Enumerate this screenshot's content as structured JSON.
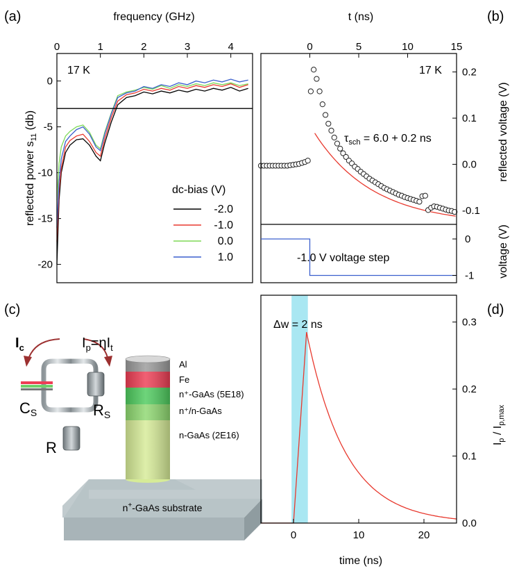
{
  "panel_labels": {
    "a": "(a)",
    "b": "(b)",
    "c": "(c)",
    "d": "(d)"
  },
  "chart_data": [
    {
      "id": "a",
      "type": "line",
      "xlabel": "frequency (GHz)",
      "ylabel": "reflected power s",
      "ylabel_sub": "11",
      "ylabel_unit": " (db)",
      "xlim": [
        0,
        4.5
      ],
      "ylim": [
        -22,
        3
      ],
      "xticks": [
        0,
        1,
        2,
        3,
        4
      ],
      "yticks": [
        0,
        -5,
        -10,
        -15,
        -20
      ],
      "annotation": "17 K",
      "legend_title": "dc-bias (V)",
      "reference_line": -3,
      "x": [
        0,
        0.05,
        0.1,
        0.2,
        0.3,
        0.45,
        0.6,
        0.75,
        0.9,
        1.0,
        1.1,
        1.25,
        1.4,
        1.6,
        1.8,
        2.0,
        2.2,
        2.4,
        2.6,
        2.8,
        3.0,
        3.2,
        3.4,
        3.6,
        3.8,
        4.0,
        4.2,
        4.4
      ],
      "series": [
        {
          "name": "-2.0",
          "color": "#000000",
          "values": [
            -20,
            -13,
            -10,
            -7.8,
            -7,
            -6.4,
            -6.3,
            -7,
            -8.2,
            -8.7,
            -6.8,
            -4.5,
            -2.6,
            -1.8,
            -1.6,
            -1.2,
            -1.4,
            -1.1,
            -1.3,
            -1.0,
            -1.2,
            -0.9,
            -1.1,
            -0.8,
            -1.0,
            -0.7,
            -1.1,
            -0.8
          ]
        },
        {
          "name": "-1.0",
          "color": "#e8392e",
          "values": [
            -17.5,
            -12,
            -9.5,
            -7.2,
            -6.5,
            -6,
            -5.8,
            -6.6,
            -7.8,
            -8.2,
            -6.3,
            -4.0,
            -2.2,
            -1.5,
            -1.3,
            -0.9,
            -1.1,
            -0.8,
            -1.0,
            -0.6,
            -0.8,
            -0.5,
            -0.7,
            -0.4,
            -0.6,
            -0.3,
            -0.7,
            -0.4
          ]
        },
        {
          "name": "0.0",
          "color": "#7ed957",
          "values": [
            -13,
            -9,
            -7.2,
            -6,
            -5.5,
            -5,
            -4.8,
            -5.6,
            -7,
            -7.4,
            -5.6,
            -3.5,
            -1.6,
            -1.2,
            -1.0,
            -0.7,
            -0.9,
            -0.5,
            -0.8,
            -0.4,
            -0.6,
            -0.3,
            -0.5,
            -0.2,
            -0.4,
            -0.2,
            -0.5,
            -0.3
          ]
        },
        {
          "name": "1.0",
          "color": "#3a5fcd",
          "values": [
            -16,
            -11,
            -8.5,
            -6.6,
            -6,
            -5.3,
            -5,
            -5.8,
            -7.2,
            -7.6,
            -5.8,
            -3.6,
            -1.8,
            -1.3,
            -1.1,
            -0.6,
            -0.8,
            -0.4,
            -0.6,
            -0.2,
            -0.4,
            0.0,
            -0.2,
            0.1,
            -0.1,
            0.2,
            -0.1,
            0.1
          ]
        }
      ]
    },
    {
      "id": "b",
      "type": "scatter",
      "xlabel": "t (ns)",
      "ylabel": "reflected voltage (V)",
      "xlim": [
        -5,
        15
      ],
      "ylim": [
        -0.13,
        0.24
      ],
      "xticks": [
        0,
        5,
        10,
        15
      ],
      "yticks": [
        0.2,
        0.1,
        0.0,
        -0.1
      ],
      "annotation": "17 K",
      "fit_label": "τ",
      "fit_label_sub": "sch",
      "fit_label_rest": " = 6.0 + 0.2 ns",
      "fit_color": "#e8392e",
      "fit": {
        "a": 0.1975,
        "tau": 6.0,
        "offset": -0.13,
        "t0": 0.5
      },
      "points_x": [
        -5.0,
        -4.7,
        -4.4,
        -4.1,
        -3.8,
        -3.5,
        -3.2,
        -2.9,
        -2.6,
        -2.3,
        -2.0,
        -1.7,
        -1.4,
        -1.1,
        -0.8,
        -0.5,
        -0.2,
        0.1,
        0.4,
        0.7,
        1.0,
        1.3,
        1.6,
        1.9,
        2.2,
        2.5,
        2.8,
        3.1,
        3.4,
        3.7,
        4.0,
        4.3,
        4.6,
        4.9,
        5.2,
        5.5,
        5.8,
        6.1,
        6.4,
        6.7,
        7.0,
        7.3,
        7.6,
        7.9,
        8.2,
        8.5,
        8.8,
        9.1,
        9.4,
        9.7,
        10.0,
        10.3,
        10.6,
        10.9,
        11.2,
        11.5,
        11.8,
        12.1,
        12.4,
        12.7,
        13.0,
        13.3,
        13.6,
        13.9,
        14.2,
        14.5,
        14.8
      ],
      "points_y": [
        -0.003,
        -0.003,
        -0.003,
        -0.003,
        -0.003,
        -0.003,
        -0.003,
        -0.003,
        -0.003,
        -0.003,
        -0.002,
        -0.001,
        0.0,
        0.001,
        0.003,
        0.005,
        0.008,
        0.158,
        0.205,
        0.185,
        0.158,
        0.13,
        0.107,
        0.088,
        0.073,
        0.058,
        0.045,
        0.034,
        0.024,
        0.016,
        0.008,
        0.002,
        -0.005,
        -0.01,
        -0.016,
        -0.021,
        -0.026,
        -0.031,
        -0.035,
        -0.039,
        -0.043,
        -0.047,
        -0.051,
        -0.054,
        -0.057,
        -0.06,
        -0.063,
        -0.066,
        -0.068,
        -0.071,
        -0.073,
        -0.075,
        -0.077,
        -0.079,
        -0.081,
        -0.069,
        -0.068,
        -0.099,
        -0.094,
        -0.091,
        -0.092,
        -0.094,
        -0.096,
        -0.098,
        -0.1,
        -0.101,
        -0.103
      ]
    },
    {
      "id": "b-lower",
      "type": "line",
      "ylabel": "voltage (V)",
      "ylabel_color": "#3a5fcd",
      "ylim": [
        -1.2,
        0.4
      ],
      "yticks": [
        0,
        -1
      ],
      "annotation": "-1.0 V voltage step",
      "color": "#3a5fcd",
      "x": [
        -5,
        0,
        0,
        15
      ],
      "values": [
        0,
        0,
        -1,
        -1
      ]
    },
    {
      "id": "d",
      "type": "line",
      "xlabel": "time (ns)",
      "ylabel": "I",
      "ylabel_sub": "p",
      "ylabel_mid": " / I",
      "ylabel_sub2": "p,max",
      "xlim": [
        -5,
        25
      ],
      "ylim": [
        0,
        0.34
      ],
      "xticks": [
        0,
        10,
        20
      ],
      "yticks": [
        0.0,
        0.1,
        0.2,
        0.3
      ],
      "annotation": "Δw = 2 ns",
      "shade": [
        -0.3,
        2.2
      ],
      "shade_color": "#a9e7f2",
      "color": "#e8392e",
      "rise": {
        "t_start": 0,
        "t_end": 2,
        "peak": 0.285
      },
      "decay_tau": 6.0
    }
  ],
  "schematic": {
    "Ic": "I",
    "Ic_sub": "c",
    "Ip": "I",
    "Ip_sub": "p",
    "Ip_eq": "=ηI",
    "Ip_eq_sub": "t",
    "Cs": "C",
    "Cs_sub": "S",
    "Rs": "R",
    "Rs_sub": "S",
    "R": "R",
    "substrate": "n",
    "substrate_sup": "+",
    "substrate_rest": "-GaAs substrate",
    "layers": [
      {
        "label": "Al",
        "color": "#9a9a9a"
      },
      {
        "label": "Fe",
        "color": "#ee3e55"
      },
      {
        "label": "n⁺-GaAs (5E18)",
        "color": "#4ecb5e"
      },
      {
        "label": "n⁺/n-GaAs",
        "color": "#8ed870"
      },
      {
        "label": "n-GaAs (2E16)",
        "color": "#d6eb97"
      }
    ]
  }
}
